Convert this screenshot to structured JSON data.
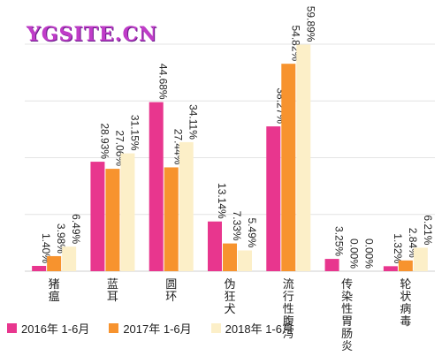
{
  "watermark": "YGSITE.CN",
  "colors": [
    "#e8368e",
    "#f7932e",
    "#fcefc8"
  ],
  "chart_data": {
    "type": "bar",
    "categories": [
      "猪瘟",
      "蓝耳",
      "圆环",
      "伪狂犬",
      "流行性腹泻",
      "传染性胃肠炎",
      "轮状病毒"
    ],
    "series": [
      {
        "name": "2016年 1-6月",
        "values": [
          1.4,
          28.93,
          44.68,
          13.14,
          38.27,
          3.25,
          1.32
        ],
        "labels": [
          "1.40%",
          "28.93%",
          "44.68%",
          "13.14%",
          "38.27%",
          "3.25%",
          "1.32%"
        ]
      },
      {
        "name": "2017年 1-6月",
        "values": [
          3.98,
          27.06,
          27.44,
          7.33,
          54.82,
          0.0,
          2.84
        ],
        "labels": [
          "3.98%",
          "27.06%",
          "27.44%",
          "7.33%",
          "54.82%",
          "0.00%",
          "2.84%"
        ]
      },
      {
        "name": "2018年 1-6月",
        "values": [
          6.49,
          31.15,
          34.11,
          5.49,
          59.89,
          0.0,
          6.21
        ],
        "labels": [
          "6.49%",
          "31.15%",
          "34.11%",
          "5.49%",
          "59.89%",
          "0.00%",
          "6.21%"
        ]
      }
    ],
    "ylim": [
      0,
      60
    ],
    "grid": true,
    "legend": "bottom-left"
  }
}
